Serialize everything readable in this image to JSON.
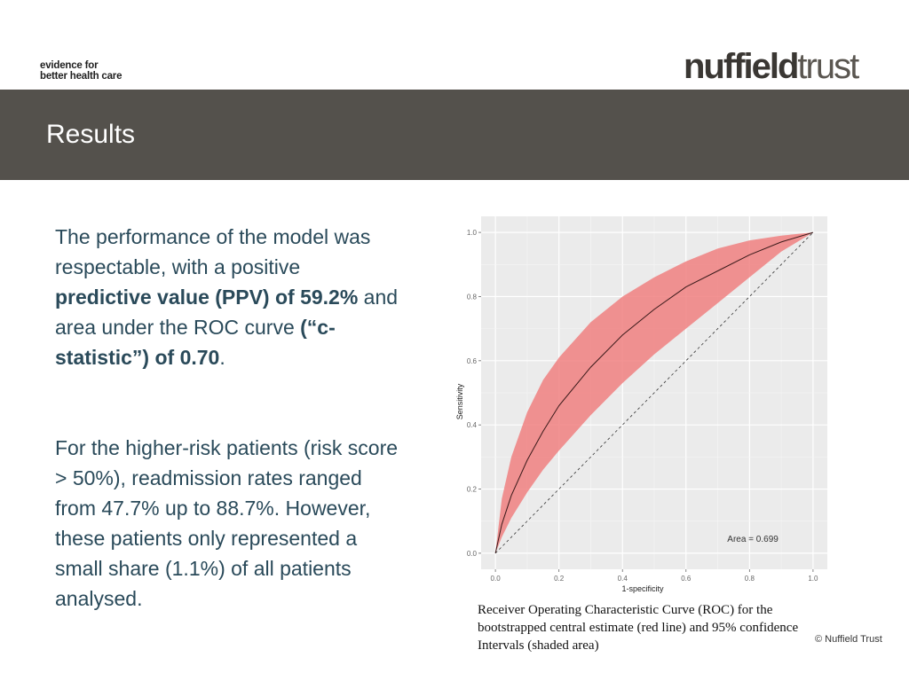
{
  "header": {
    "tagline_line1": "evidence for",
    "tagline_line2": "better health care",
    "logo_part1": "nuffield",
    "logo_part2": "trust"
  },
  "banner": {
    "title": "Results"
  },
  "paragraph1": {
    "t1": "The performance of the model was respectable, with a positive ",
    "b1": "predictive value (PPV) of 59.2%",
    "t2": " and area under the ROC curve ",
    "b2": "(“c-statistic”) of 0.70",
    "t3": "."
  },
  "paragraph2": "For the higher-risk patients (risk score > 50%), readmission rates ranged from 47.7% up to 88.7%. However, these patients only represented a small share (1.1%) of all patients analysed.",
  "caption": "Receiver Operating Characteristic Curve (ROC) for the bootstrapped central estimate (red line) and 95% confidence Intervals (shaded area)",
  "copyright": "© Nuffield Trust",
  "colors": {
    "banner": "#54514c",
    "body_text": "#2a4a5a",
    "plot_bg": "#ebebeb",
    "ci_fill": "#f08080",
    "curve": "#3a1a1a"
  },
  "chart_data": {
    "type": "line",
    "xlabel": "1-specificity",
    "ylabel": "Sensitivity",
    "xlim": [
      0,
      1
    ],
    "ylim": [
      0,
      1
    ],
    "xticks": [
      "0.0",
      "0.2",
      "0.4",
      "0.6",
      "0.8",
      "1.0"
    ],
    "yticks": [
      "0.0",
      "0.2",
      "0.4",
      "0.6",
      "0.8",
      "1.0"
    ],
    "grid": true,
    "annotation": "Area = 0.699",
    "x": [
      0,
      0.02,
      0.05,
      0.1,
      0.15,
      0.2,
      0.3,
      0.4,
      0.5,
      0.6,
      0.7,
      0.8,
      0.9,
      1.0
    ],
    "series": [
      {
        "values": [
          0,
          0.09,
          0.18,
          0.29,
          0.38,
          0.46,
          0.58,
          0.68,
          0.76,
          0.83,
          0.88,
          0.93,
          0.97,
          1.0
        ]
      }
    ],
    "ci_lower": [
      0,
      0.05,
      0.11,
      0.19,
      0.26,
      0.32,
      0.43,
      0.53,
      0.62,
      0.7,
      0.78,
      0.86,
      0.94,
      1.0
    ],
    "ci_upper": [
      0,
      0.17,
      0.3,
      0.44,
      0.54,
      0.61,
      0.72,
      0.8,
      0.86,
      0.91,
      0.95,
      0.975,
      0.99,
      1.0
    ],
    "reference_line": {
      "x": [
        0,
        1
      ],
      "y": [
        0,
        1
      ],
      "style": "dashed"
    }
  }
}
